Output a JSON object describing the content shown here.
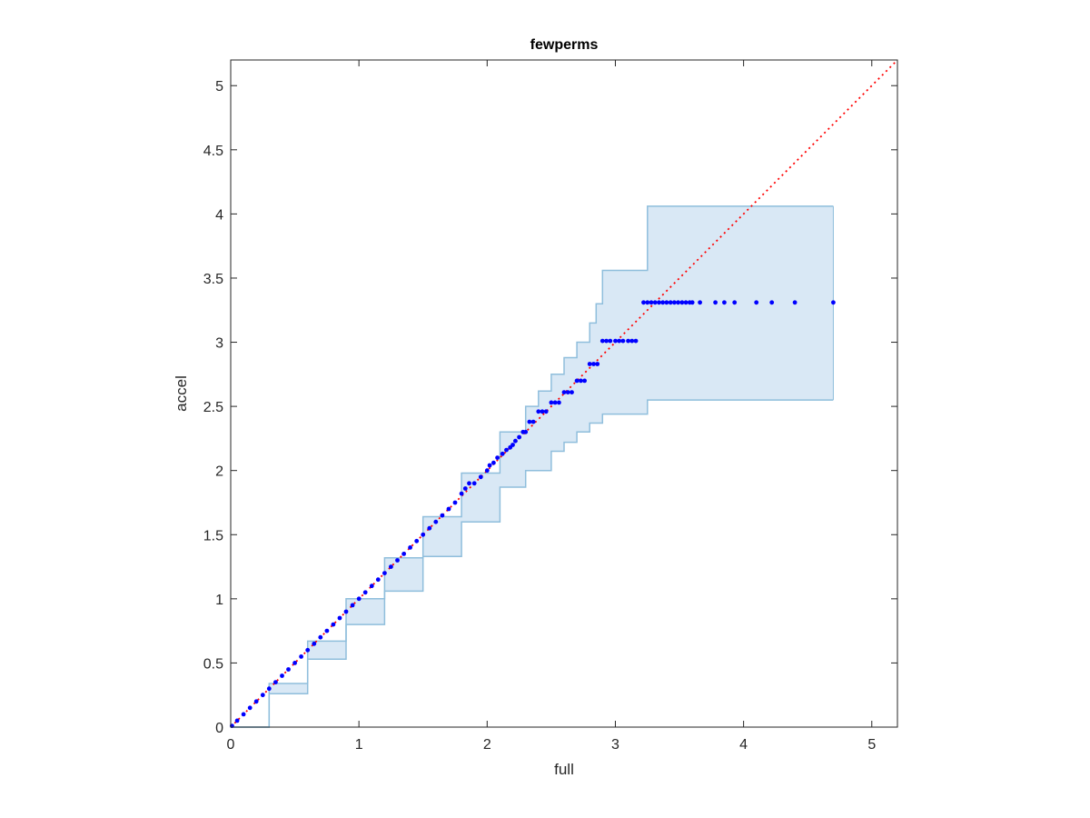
{
  "chart_data": {
    "type": "scatter",
    "title": "fewperms",
    "xlabel": "full",
    "ylabel": "accel",
    "xlim": [
      0,
      5.2
    ],
    "ylim": [
      0,
      5.2
    ],
    "xticks": [
      "0",
      "1",
      "2",
      "3",
      "4",
      "5"
    ],
    "yticks": [
      "0",
      "0.5",
      "1",
      "1.5",
      "2",
      "2.5",
      "3",
      "3.5",
      "4",
      "4.5",
      "5"
    ],
    "grid": false,
    "legend": "none",
    "colors": {
      "points": "#0000ff",
      "reference_line": "#ff0000",
      "band_fill": "#d9e8f5",
      "band_edge": "#8fbedc",
      "axes": "#262626"
    },
    "reference_line": {
      "style": "dotted",
      "x": [
        0,
        5.2
      ],
      "y": [
        0,
        5.2
      ]
    },
    "band_upper": {
      "x": [
        0,
        0.3,
        0.6,
        0.9,
        1.2,
        1.5,
        1.8,
        2.1,
        2.3,
        2.4,
        2.5,
        2.6,
        2.7,
        2.8,
        2.85,
        2.9,
        3.0,
        3.25,
        3.25,
        4.7
      ],
      "y": [
        0,
        0.34,
        0.67,
        1.0,
        1.32,
        1.64,
        1.98,
        2.3,
        2.5,
        2.62,
        2.75,
        2.88,
        3.0,
        3.15,
        3.3,
        3.56,
        3.56,
        3.56,
        4.06,
        4.06
      ]
    },
    "band_lower": {
      "x": [
        0,
        0.3,
        0.6,
        0.9,
        1.2,
        1.5,
        1.8,
        2.1,
        2.3,
        2.5,
        2.6,
        2.7,
        2.8,
        2.9,
        3.25,
        3.25,
        4.7
      ],
      "y": [
        0,
        0.26,
        0.53,
        0.8,
        1.06,
        1.33,
        1.6,
        1.87,
        2.0,
        2.15,
        2.22,
        2.3,
        2.37,
        2.44,
        2.44,
        2.55,
        2.55
      ]
    },
    "series": [
      {
        "x": [
          0.01,
          0.05,
          0.1,
          0.15,
          0.2,
          0.25,
          0.3,
          0.35,
          0.4,
          0.45,
          0.5,
          0.55,
          0.6,
          0.65,
          0.7,
          0.75,
          0.8,
          0.85,
          0.9,
          0.95,
          1.0,
          1.05,
          1.1,
          1.15,
          1.2,
          1.25,
          1.3,
          1.35,
          1.4,
          1.45,
          1.5,
          1.55,
          1.6,
          1.65,
          1.7,
          1.75,
          1.8,
          1.83,
          1.86,
          1.9,
          1.95,
          2.0,
          2.02,
          2.05,
          2.08,
          2.12,
          2.15,
          2.18,
          2.2,
          2.22,
          2.25,
          2.28,
          2.3,
          2.33,
          2.36,
          2.4,
          2.43,
          2.46,
          2.5,
          2.53,
          2.56,
          2.6,
          2.63,
          2.66,
          2.7,
          2.73,
          2.76,
          2.8,
          2.83,
          2.86,
          2.9,
          2.93,
          2.96,
          3.0,
          3.03,
          3.06,
          3.1,
          3.13,
          3.16,
          3.22,
          3.25,
          3.28,
          3.31,
          3.34,
          3.37,
          3.4,
          3.43,
          3.46,
          3.49,
          3.52,
          3.55,
          3.58,
          3.6,
          3.66,
          3.78,
          3.85,
          3.93,
          4.1,
          4.22,
          4.4,
          4.7
        ],
        "y": [
          0.01,
          0.05,
          0.1,
          0.15,
          0.2,
          0.25,
          0.3,
          0.35,
          0.4,
          0.45,
          0.5,
          0.55,
          0.6,
          0.65,
          0.7,
          0.75,
          0.8,
          0.85,
          0.9,
          0.95,
          1.0,
          1.05,
          1.1,
          1.15,
          1.2,
          1.25,
          1.3,
          1.35,
          1.4,
          1.45,
          1.5,
          1.55,
          1.6,
          1.65,
          1.7,
          1.75,
          1.82,
          1.86,
          1.9,
          1.9,
          1.95,
          2.0,
          2.04,
          2.06,
          2.1,
          2.13,
          2.16,
          2.18,
          2.2,
          2.23,
          2.26,
          2.3,
          2.3,
          2.38,
          2.38,
          2.46,
          2.46,
          2.46,
          2.53,
          2.53,
          2.53,
          2.61,
          2.61,
          2.61,
          2.7,
          2.7,
          2.7,
          2.83,
          2.83,
          2.83,
          3.01,
          3.01,
          3.01,
          3.01,
          3.01,
          3.01,
          3.01,
          3.01,
          3.01,
          3.31,
          3.31,
          3.31,
          3.31,
          3.31,
          3.31,
          3.31,
          3.31,
          3.31,
          3.31,
          3.31,
          3.31,
          3.31,
          3.31,
          3.31,
          3.31,
          3.31,
          3.31,
          3.31,
          3.31,
          3.31,
          3.31
        ]
      }
    ]
  }
}
